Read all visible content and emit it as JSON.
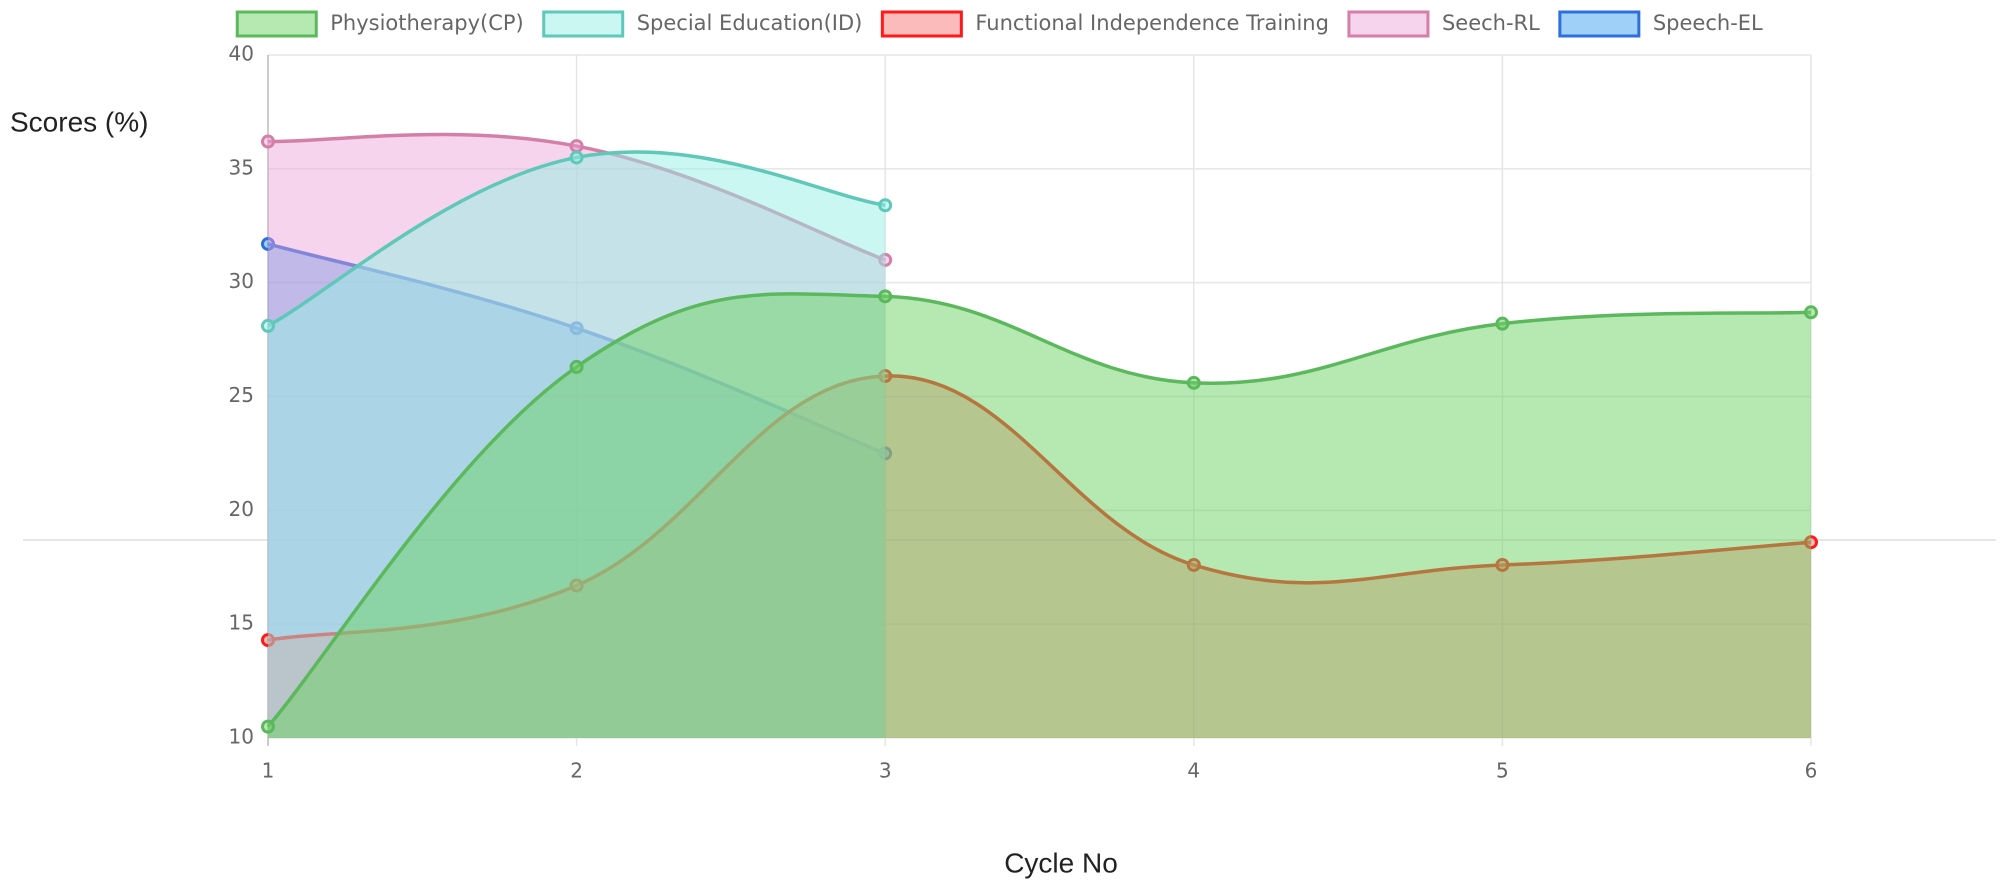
{
  "chart_data": {
    "type": "area",
    "x_label": "Cycle No",
    "y_label": "Scores (%)",
    "x": [
      1,
      2,
      3,
      4,
      5,
      6
    ],
    "xlim": [
      1,
      6
    ],
    "xticks": [
      1,
      2,
      3,
      4,
      5,
      6
    ],
    "ylim": [
      10,
      40
    ],
    "yticks": [
      10,
      15,
      20,
      25,
      30,
      35,
      40
    ],
    "grid": true,
    "legend": "top",
    "series": [
      {
        "name": "Physiotherapy(CP)",
        "color": "#5cb85c",
        "fill": "rgba(110,210,100,0.5)",
        "values": [
          10.5,
          26.3,
          29.4,
          25.6,
          28.2,
          28.7
        ]
      },
      {
        "name": "Special Education(ID)",
        "color": "#5fc8b8",
        "fill": "rgba(150,240,230,0.5)",
        "values": [
          28.1,
          35.5,
          33.4,
          null,
          null,
          null
        ]
      },
      {
        "name": "Functional Independence Training",
        "color": "#ff1a1a",
        "fill": "rgba(250,120,120,0.5)",
        "values": [
          14.3,
          16.7,
          25.9,
          17.6,
          17.6,
          18.6
        ]
      },
      {
        "name": "Seech-RL",
        "color": "#d47fa6",
        "fill": "rgba(235,160,215,0.45)",
        "values": [
          36.2,
          36.0,
          31.0,
          null,
          null,
          null
        ]
      },
      {
        "name": "Speech-EL",
        "color": "#2f6fdb",
        "fill": "rgba(40,150,240,0.45)",
        "values": [
          31.7,
          28.0,
          22.5,
          null,
          null,
          null
        ]
      }
    ]
  }
}
